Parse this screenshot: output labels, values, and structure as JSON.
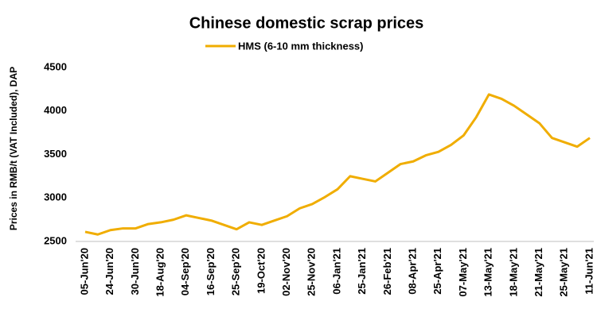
{
  "chart_data": {
    "type": "line",
    "title": "Chinese domestic scrap prices",
    "y_label": "Prices in RMB/t (VAT Included), DAP",
    "categories": [
      "05-Jun'20",
      null,
      "24-Jun'20",
      null,
      "30-Jun'20",
      null,
      "18-Aug'20",
      null,
      "04-Sep'20",
      null,
      "16-Sep'20",
      null,
      "25-Sep'20",
      null,
      "19-Oct'20",
      null,
      "02-Nov'20",
      null,
      "25-Nov'20",
      null,
      "06-Jan'21",
      null,
      "25-Jan'21",
      null,
      "26-Feb'21",
      null,
      "08-Apr'21",
      null,
      "25-Apr'21",
      null,
      "07-May'21",
      null,
      "13-May'21",
      null,
      "18-May'21",
      null,
      "21-May'21",
      null,
      "25-May'21",
      null,
      "11-Jun'21"
    ],
    "series": [
      {
        "name": "HMS (6-10 mm thickness)",
        "color": "#f0ad00",
        "values": [
          2610,
          2580,
          2630,
          2650,
          2650,
          2700,
          2720,
          2750,
          2800,
          2770,
          2740,
          2690,
          2640,
          2720,
          2690,
          2740,
          2790,
          2880,
          2930,
          3010,
          3100,
          3250,
          3220,
          3190,
          3290,
          3390,
          3420,
          3490,
          3530,
          3610,
          3720,
          3930,
          4190,
          4140,
          4060,
          3960,
          3860,
          3690,
          3640,
          3590,
          3690
        ]
      }
    ],
    "ylim": [
      2500,
      4500
    ],
    "yticks": [
      2500,
      3000,
      3500,
      4000,
      4500
    ],
    "grid": false,
    "legend": "top"
  }
}
